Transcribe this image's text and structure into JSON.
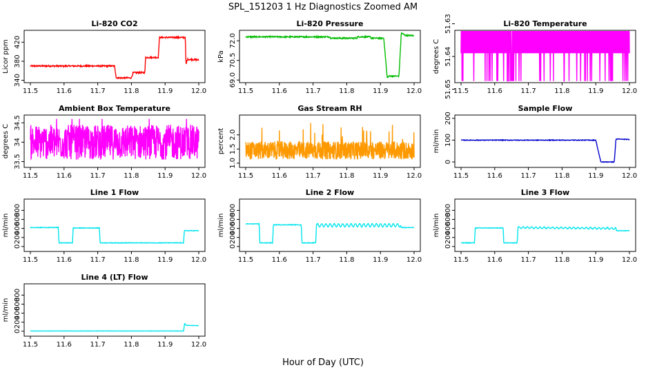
{
  "figure": {
    "title": "SPL_151203  1 Hz Diagnostics Zoomed AM",
    "xlabel": "Hour of Day (UTC)"
  },
  "chart_data": [
    {
      "id": "co2",
      "type": "line",
      "title": "Li-820 CO2",
      "ylabel": "Licor ppm",
      "color": "#ff0000",
      "mode": "step",
      "noise": 1.5,
      "xlim": [
        11.5,
        12.0
      ],
      "ylim": [
        335,
        445
      ],
      "xticks": [
        "11.5",
        "11.6",
        "11.7",
        "11.8",
        "11.9",
        "12.0"
      ],
      "yticks": [
        {
          "v": 340,
          "label": "340"
        },
        {
          "v": 380,
          "label": "380"
        },
        {
          "v": 420,
          "label": "420"
        }
      ],
      "points": [
        [
          11.5,
          370
        ],
        [
          11.75,
          370
        ],
        [
          11.755,
          345
        ],
        [
          11.8,
          345
        ],
        [
          11.805,
          356
        ],
        [
          11.84,
          356
        ],
        [
          11.842,
          388
        ],
        [
          11.88,
          388
        ],
        [
          11.883,
          430
        ],
        [
          11.96,
          430
        ],
        [
          11.962,
          372
        ],
        [
          11.966,
          384
        ],
        [
          12.0,
          383
        ]
      ]
    },
    {
      "id": "pressure",
      "type": "line",
      "title": "Li-820 Pressure",
      "ylabel": "kPa",
      "color": "#00bb00",
      "mode": "step",
      "noise": 0.05,
      "xlim": [
        11.5,
        12.0
      ],
      "ylim": [
        68.8,
        72.8
      ],
      "xticks": [
        "11.5",
        "11.6",
        "11.7",
        "11.8",
        "11.9",
        "12.0"
      ],
      "yticks": [
        {
          "v": 69.0,
          "label": "69.0"
        },
        {
          "v": 70.5,
          "label": "70.5"
        },
        {
          "v": 72.0,
          "label": "72.0"
        }
      ],
      "points": [
        [
          11.5,
          72.3
        ],
        [
          11.75,
          72.3
        ],
        [
          11.752,
          72.2
        ],
        [
          11.83,
          72.2
        ],
        [
          11.832,
          72.3
        ],
        [
          11.87,
          72.3
        ],
        [
          11.872,
          72.2
        ],
        [
          11.91,
          72.2
        ],
        [
          11.92,
          69.2
        ],
        [
          11.925,
          69.3
        ],
        [
          11.955,
          69.3
        ],
        [
          11.962,
          72.6
        ],
        [
          11.975,
          72.4
        ],
        [
          12.0,
          72.4
        ]
      ]
    },
    {
      "id": "licor_temp",
      "type": "line",
      "title": "Li-820 Temperature",
      "ylabel": "degrees C",
      "color": "#ff00ff",
      "mode": "spiky",
      "xlim": [
        11.5,
        12.0
      ],
      "ylim": [
        51.648,
        51.632
      ],
      "base": 51.6355,
      "band": 0.0035,
      "spike_to": 51.6475,
      "xticks": [
        "11.5",
        "11.6",
        "11.7",
        "11.8",
        "11.9",
        "12.0"
      ],
      "yticks": [
        {
          "v": 51.63,
          "label": "51.63"
        },
        {
          "v": 51.64,
          "label": "51.64"
        },
        {
          "v": 51.65,
          "label": "51.65"
        }
      ]
    },
    {
      "id": "ambient_temp",
      "type": "line",
      "title": "Ambient Box Temperature",
      "ylabel": "degrees C",
      "color": "#ff00ff",
      "mode": "noise",
      "xlim": [
        11.5,
        12.0
      ],
      "ylim": [
        33.35,
        34.7
      ],
      "base": 34.0,
      "amp": 0.45,
      "cap": 34.5,
      "floor": 33.45,
      "xticks": [
        "11.5",
        "11.6",
        "11.7",
        "11.8",
        "11.9",
        "12.0"
      ],
      "yticks": [
        {
          "v": 33.5,
          "label": "33.5"
        },
        {
          "v": 34.0,
          "label": "34"
        },
        {
          "v": 34.5,
          "label": "34.5"
        }
      ]
    },
    {
      "id": "gas_rh",
      "type": "line",
      "title": "Gas Stream RH",
      "ylabel": "percent",
      "color": "#ff9900",
      "mode": "noise_rh",
      "xlim": [
        11.5,
        12.0
      ],
      "ylim": [
        0.85,
        2.7
      ],
      "base": 1.45,
      "amp": 0.32,
      "xticks": [
        "11.5",
        "11.6",
        "11.7",
        "11.8",
        "11.9",
        "12.0"
      ],
      "yticks": [
        {
          "v": 1.0,
          "label": "1.0"
        },
        {
          "v": 1.5,
          "label": "1.5"
        },
        {
          "v": 2.0,
          "label": "2.0"
        }
      ]
    },
    {
      "id": "sample_flow",
      "type": "line",
      "title": "Sample Flow",
      "ylabel": "ml/min",
      "color": "#0000cc",
      "mode": "step",
      "noise": 1.5,
      "xlim": [
        11.5,
        12.0
      ],
      "ylim": [
        -25,
        215
      ],
      "xticks": [
        "11.5",
        "11.6",
        "11.7",
        "11.8",
        "11.9",
        "12.0"
      ],
      "yticks": [
        {
          "v": 0,
          "label": "0"
        },
        {
          "v": 100,
          "label": "100"
        },
        {
          "v": 200,
          "label": "200"
        }
      ],
      "points": [
        [
          11.5,
          100
        ],
        [
          11.7,
          100
        ],
        [
          11.9,
          100
        ],
        [
          11.915,
          0
        ],
        [
          11.955,
          0
        ],
        [
          11.96,
          105
        ],
        [
          12.0,
          103
        ]
      ]
    },
    {
      "id": "line1_flow",
      "type": "line",
      "title": "Line 1 Flow",
      "ylabel": "ml/min",
      "color": "#00e5ee",
      "mode": "step",
      "noise": 6,
      "xlim": [
        11.5,
        12.0
      ],
      "ylim": [
        -110,
        1050
      ],
      "xticks": [
        "11.5",
        "11.6",
        "11.7",
        "11.8",
        "11.9",
        "12.0"
      ],
      "yticks": [
        {
          "v": 0,
          "label": "0"
        },
        {
          "v": 200,
          "label": "200"
        },
        {
          "v": 400,
          "label": "400"
        },
        {
          "v": 600,
          "label": "600"
        },
        {
          "v": 800,
          "label": "800"
        }
      ],
      "points": [
        [
          11.5,
          420
        ],
        [
          11.583,
          420
        ],
        [
          11.585,
          80
        ],
        [
          11.625,
          80
        ],
        [
          11.627,
          410
        ],
        [
          11.705,
          410
        ],
        [
          11.707,
          80
        ],
        [
          11.955,
          80
        ],
        [
          11.957,
          350
        ],
        [
          12.0,
          350
        ]
      ]
    },
    {
      "id": "line2_flow",
      "type": "line",
      "title": "Line 2 Flow",
      "ylabel": "ml/min",
      "color": "#00e5ee",
      "mode": "step_wave",
      "noise": 6,
      "xlim": [
        11.5,
        12.0
      ],
      "ylim": [
        -110,
        1050
      ],
      "xticks": [
        "11.5",
        "11.6",
        "11.7",
        "11.8",
        "11.9",
        "12.0"
      ],
      "yticks": [
        {
          "v": 0,
          "label": "0"
        },
        {
          "v": 200,
          "label": "200"
        },
        {
          "v": 400,
          "label": "400"
        },
        {
          "v": 600,
          "label": "600"
        },
        {
          "v": 800,
          "label": "800"
        }
      ],
      "points": [
        [
          11.5,
          500
        ],
        [
          11.54,
          500
        ],
        [
          11.542,
          80
        ],
        [
          11.58,
          80
        ],
        [
          11.582,
          480
        ],
        [
          11.665,
          480
        ],
        [
          11.667,
          80
        ],
        [
          11.708,
          80
        ],
        [
          11.71,
          470
        ],
        [
          11.96,
          470
        ],
        [
          11.962,
          420
        ],
        [
          12.0,
          420
        ]
      ],
      "wave_from": 11.71,
      "wave_to": 11.96,
      "wave_amp": 35
    },
    {
      "id": "line3_flow",
      "type": "line",
      "title": "Line 3 Flow",
      "ylabel": "ml/min",
      "color": "#00e5ee",
      "mode": "step_wave",
      "noise": 6,
      "xlim": [
        11.5,
        12.0
      ],
      "ylim": [
        -110,
        1050
      ],
      "xticks": [
        "11.5",
        "11.6",
        "11.7",
        "11.8",
        "11.9",
        "12.0"
      ],
      "yticks": [
        {
          "v": 0,
          "label": "0"
        },
        {
          "v": 200,
          "label": "200"
        },
        {
          "v": 400,
          "label": "400"
        },
        {
          "v": 600,
          "label": "600"
        },
        {
          "v": 800,
          "label": "800"
        }
      ],
      "points": [
        [
          11.5,
          80
        ],
        [
          11.54,
          80
        ],
        [
          11.542,
          410
        ],
        [
          11.625,
          410
        ],
        [
          11.627,
          80
        ],
        [
          11.667,
          80
        ],
        [
          11.669,
          420
        ],
        [
          11.96,
          400
        ],
        [
          11.962,
          350
        ],
        [
          12.0,
          350
        ]
      ],
      "wave_from": 11.669,
      "wave_to": 11.96,
      "wave_amp": 18
    },
    {
      "id": "line4_flow",
      "type": "line",
      "title": "Line 4 (LT) Flow",
      "ylabel": "ml/min",
      "color": "#00e5ee",
      "mode": "step",
      "noise": 3,
      "xlim": [
        11.5,
        12.0
      ],
      "ylim": [
        -110,
        1050
      ],
      "xticks": [
        "11.5",
        "11.6",
        "11.7",
        "11.8",
        "11.9",
        "12.0"
      ],
      "yticks": [
        {
          "v": 0,
          "label": "0"
        },
        {
          "v": 200,
          "label": "200"
        },
        {
          "v": 400,
          "label": "400"
        },
        {
          "v": 600,
          "label": "600"
        },
        {
          "v": 800,
          "label": "800"
        }
      ],
      "points": [
        [
          11.5,
          5
        ],
        [
          11.955,
          5
        ],
        [
          11.958,
          180
        ],
        [
          11.962,
          130
        ],
        [
          12.0,
          125
        ]
      ]
    }
  ]
}
